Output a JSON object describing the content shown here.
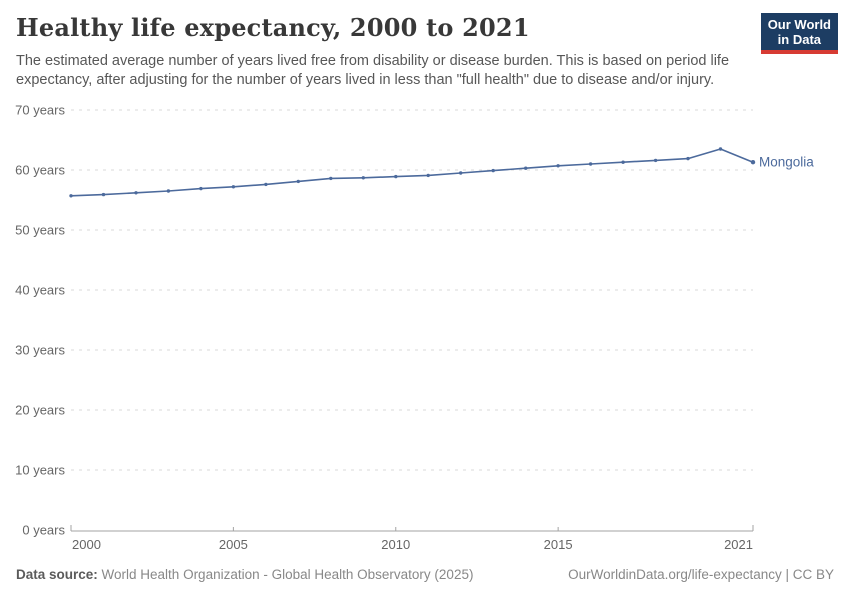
{
  "header": {
    "title": "Healthy life expectancy, 2000 to 2021",
    "subtitle": "The estimated average number of years lived free from disability or disease burden. This is based on period life expectancy, after adjusting for the number of years lived in less than \"full health\" due to disease and/or injury.",
    "logo": {
      "line1": "Our World",
      "line2": "in Data"
    }
  },
  "chart_data": {
    "type": "line",
    "title": "Healthy life expectancy, 2000 to 2021",
    "x": [
      2000,
      2001,
      2002,
      2003,
      2004,
      2005,
      2006,
      2007,
      2008,
      2009,
      2010,
      2011,
      2012,
      2013,
      2014,
      2015,
      2016,
      2017,
      2018,
      2019,
      2020,
      2021
    ],
    "series": [
      {
        "name": "Mongolia",
        "color": "#4c6a9c",
        "values": [
          55.7,
          55.9,
          56.2,
          56.5,
          56.9,
          57.2,
          57.6,
          58.1,
          58.6,
          58.7,
          58.9,
          59.1,
          59.5,
          59.9,
          60.3,
          60.7,
          61.0,
          61.3,
          61.6,
          61.9,
          63.5,
          61.3
        ]
      }
    ],
    "xlabel": "",
    "ylabel": "",
    "ylim": [
      0,
      70
    ],
    "yticks": [
      0,
      10,
      20,
      30,
      40,
      50,
      60,
      70
    ],
    "ytick_suffix": " years",
    "xticks": [
      2000,
      2005,
      2010,
      2015,
      2021
    ],
    "grid": "horizontal-dashed",
    "legend": "end-of-line-label"
  },
  "footer": {
    "datasource_label": "Data source:",
    "datasource_text": " World Health Organization - Global Health Observatory (2025)",
    "credit": "OurWorldinData.org/life-expectancy | CC BY"
  },
  "colors": {
    "line": "#4c6a9c",
    "grid": "#d9d9d9",
    "axis": "#a3a3a3",
    "tick_text": "#666666",
    "logo_bg": "#1d3d63",
    "logo_accent": "#d73b33"
  }
}
